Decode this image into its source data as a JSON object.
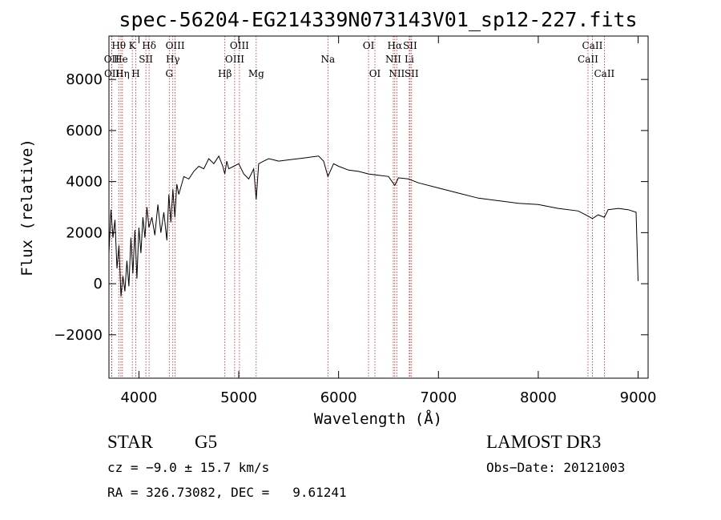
{
  "chart_data": {
    "type": "line",
    "title": "spec-56204-EG214339N073143V01_sp12-227.fits",
    "xlabel": "Wavelength (Å)",
    "ylabel": "Flux (relative)",
    "xlim": [
      3700,
      9100
    ],
    "ylim": [
      -3700,
      9700
    ],
    "x_ticks": [
      4000,
      5000,
      6000,
      7000,
      8000,
      9000
    ],
    "x_tick_labels": [
      "4000",
      "5000",
      "6000",
      "7000",
      "8000",
      "9000"
    ],
    "y_ticks": [
      -2000,
      0,
      2000,
      4000,
      6000,
      8000
    ],
    "y_tick_labels": [
      "−2000",
      "0",
      "2000",
      "4000",
      "6000",
      "8000"
    ],
    "series": [
      {
        "name": "spectrum",
        "x": [
          3700,
          3720,
          3740,
          3760,
          3780,
          3800,
          3820,
          3840,
          3860,
          3880,
          3900,
          3920,
          3940,
          3960,
          3980,
          4000,
          4020,
          4040,
          4060,
          4080,
          4100,
          4130,
          4160,
          4190,
          4220,
          4250,
          4280,
          4300,
          4320,
          4340,
          4360,
          4380,
          4400,
          4450,
          4500,
          4550,
          4600,
          4650,
          4700,
          4750,
          4800,
          4840,
          4860,
          4880,
          4900,
          4950,
          5000,
          5050,
          5100,
          5150,
          5175,
          5200,
          5250,
          5300,
          5350,
          5400,
          5500,
          5600,
          5700,
          5800,
          5850,
          5893,
          5950,
          6000,
          6100,
          6200,
          6300,
          6400,
          6500,
          6563,
          6600,
          6700,
          6800,
          7000,
          7200,
          7400,
          7600,
          7800,
          8000,
          8200,
          8400,
          8498,
          8542,
          8600,
          8662,
          8700,
          8800,
          8900,
          8980,
          9000
        ],
        "values": [
          1200,
          2900,
          1800,
          2500,
          600,
          1500,
          -500,
          300,
          -300,
          900,
          -100,
          1800,
          400,
          2100,
          200,
          2200,
          1200,
          2600,
          1800,
          3000,
          2200,
          2600,
          1900,
          3100,
          2000,
          2800,
          1700,
          3500,
          2400,
          3700,
          2600,
          3900,
          3500,
          4200,
          4100,
          4400,
          4600,
          4500,
          4900,
          4700,
          5000,
          4600,
          4300,
          4800,
          4500,
          4600,
          4700,
          4300,
          4100,
          4500,
          3300,
          4700,
          4800,
          4900,
          4850,
          4800,
          4850,
          4900,
          4950,
          5000,
          4800,
          4200,
          4700,
          4600,
          4450,
          4400,
          4300,
          4250,
          4200,
          3850,
          4150,
          4100,
          3950,
          3750,
          3550,
          3350,
          3250,
          3150,
          3100,
          2950,
          2850,
          2650,
          2550,
          2700,
          2600,
          2900,
          2950,
          2900,
          2800,
          100
        ]
      }
    ],
    "lines": [
      {
        "label": "Hθ",
        "x": 3798,
        "row": 1
      },
      {
        "label": "OII",
        "x": 3727,
        "row": 2
      },
      {
        "label": "OII",
        "x": 3729,
        "row": 3
      },
      {
        "label": "He",
        "x": 3820,
        "row": 2
      },
      {
        "label": "Hη",
        "x": 3835,
        "row": 3
      },
      {
        "label": "K",
        "x": 3934,
        "row": 1
      },
      {
        "label": "H",
        "x": 3969,
        "row": 3
      },
      {
        "label": "SII",
        "x": 4070,
        "row": 2
      },
      {
        "label": "Hδ",
        "x": 4102,
        "row": 1
      },
      {
        "label": "OIII",
        "x": 4363,
        "row": 1
      },
      {
        "label": "Hγ",
        "x": 4340,
        "row": 2
      },
      {
        "label": "G",
        "x": 4304,
        "row": 3
      },
      {
        "label": "Hβ",
        "x": 4861,
        "row": 3
      },
      {
        "label": "OIII",
        "x": 4959,
        "row": 2
      },
      {
        "label": "OIII",
        "x": 5007,
        "row": 1
      },
      {
        "label": "Mg",
        "x": 5175,
        "row": 3
      },
      {
        "label": "Na",
        "x": 5893,
        "row": 2
      },
      {
        "label": "OI",
        "x": 6300,
        "row": 1
      },
      {
        "label": "OI",
        "x": 6364,
        "row": 3
      },
      {
        "label": "Hα",
        "x": 6563,
        "row": 1
      },
      {
        "label": "NII",
        "x": 6548,
        "row": 2
      },
      {
        "label": "NII",
        "x": 6583,
        "row": 3
      },
      {
        "label": "SII",
        "x": 6716,
        "row": 1
      },
      {
        "label": "Li",
        "x": 6708,
        "row": 2
      },
      {
        "label": "SII",
        "x": 6731,
        "row": 3
      },
      {
        "label": "CaII",
        "x": 8542,
        "row": 1
      },
      {
        "label": "CaII",
        "x": 8498,
        "row": 2
      },
      {
        "label": "CaII",
        "x": 8662,
        "row": 3
      }
    ]
  },
  "info": {
    "object_class": "STAR",
    "subclass": "G5",
    "survey": "LAMOST DR3",
    "cz": "cz = −9.0 ± 15.7 km/s",
    "obs_date": "Obs−Date: 20121003",
    "coords": "RA = 326.73082, DEC =   9.61241"
  },
  "colors": {
    "line_marker": "#c02020",
    "spectrum": "#000000",
    "axes": "#000000"
  }
}
